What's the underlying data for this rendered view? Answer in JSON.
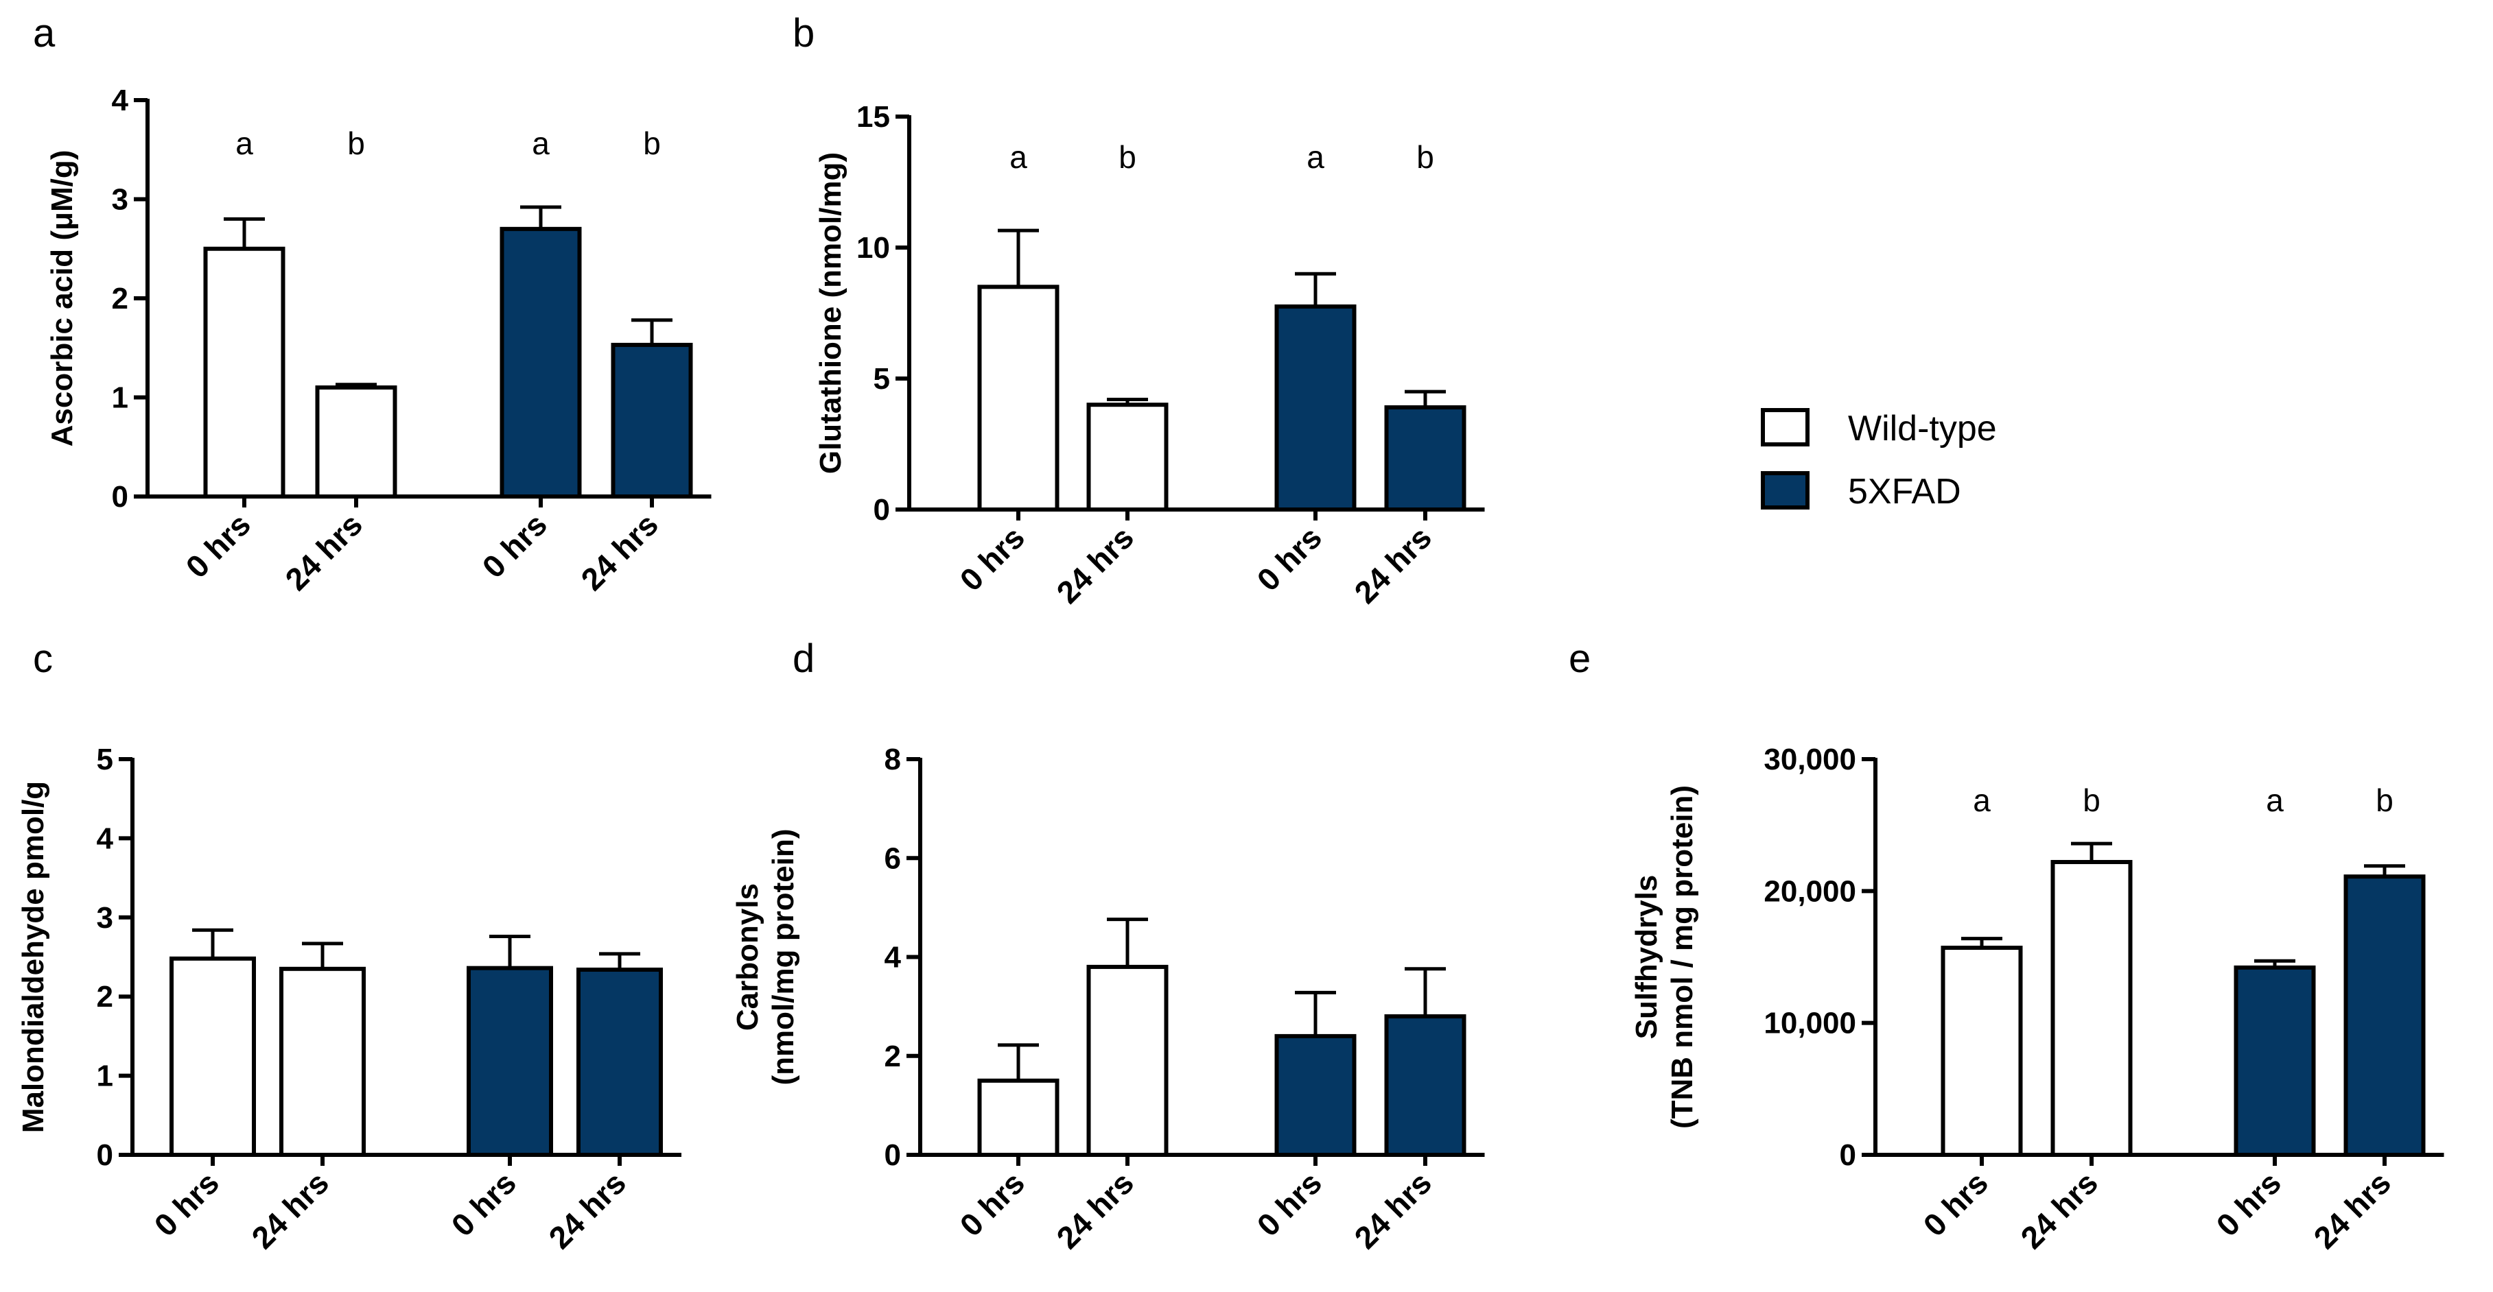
{
  "colors": {
    "wild_type": "#ffffff",
    "fxfad": "#053763",
    "axis": "#000000"
  },
  "legend": {
    "entries": [
      {
        "label": "Wild-type",
        "color": "#ffffff"
      },
      {
        "label": "5XFAD",
        "color": "#053763"
      }
    ]
  },
  "chart_data": [
    {
      "panel": "a",
      "type": "bar",
      "ylabel": [
        "Ascorbic acid (μM/g)"
      ],
      "ylim": [
        0,
        4
      ],
      "yticks": [
        0,
        1,
        2,
        3,
        4
      ],
      "ytick_labels": [
        "0",
        "1",
        "2",
        "3",
        "4"
      ],
      "categories": [
        "0 hrs",
        "24 hrs",
        "0 hrs",
        "24 hrs"
      ],
      "groups": [
        "Wild-type",
        "Wild-type",
        "5XFAD",
        "5XFAD"
      ],
      "values": [
        2.5,
        1.1,
        2.7,
        1.53
      ],
      "errors": [
        0.3,
        0.03,
        0.22,
        0.25
      ],
      "annotations": [
        "a",
        "b",
        "a",
        "b"
      ]
    },
    {
      "panel": "b",
      "type": "bar",
      "ylabel": [
        "Glutathione (nmol/mg)"
      ],
      "ylim": [
        0,
        15
      ],
      "yticks": [
        0,
        5,
        10,
        15
      ],
      "ytick_labels": [
        "0",
        "5",
        "10",
        "15"
      ],
      "categories": [
        "0 hrs",
        "24 hrs",
        "0 hrs",
        "24 hrs"
      ],
      "groups": [
        "Wild-type",
        "Wild-type",
        "5XFAD",
        "5XFAD"
      ],
      "values": [
        8.5,
        4.0,
        7.75,
        3.9
      ],
      "errors": [
        2.15,
        0.2,
        1.25,
        0.6
      ],
      "annotations": [
        "a",
        "b",
        "a",
        "b"
      ]
    },
    {
      "panel": "c",
      "type": "bar",
      "ylabel": [
        "Malondialdehyde pmol/g"
      ],
      "ylim": [
        0,
        5
      ],
      "yticks": [
        0,
        1,
        2,
        3,
        4,
        5
      ],
      "ytick_labels": [
        "0",
        "1",
        "2",
        "3",
        "4",
        "5"
      ],
      "categories": [
        "0 hrs",
        "24 hrs",
        "0 hrs",
        "24 hrs"
      ],
      "groups": [
        "Wild-type",
        "Wild-type",
        "5XFAD",
        "5XFAD"
      ],
      "values": [
        2.48,
        2.35,
        2.36,
        2.34
      ],
      "errors": [
        0.36,
        0.32,
        0.4,
        0.2
      ],
      "annotations": []
    },
    {
      "panel": "d",
      "type": "bar",
      "ylabel": [
        "Carbonyls",
        "(nmol/mg protein)"
      ],
      "ylim": [
        0,
        8
      ],
      "yticks": [
        0,
        2,
        4,
        6,
        8
      ],
      "ytick_labels": [
        "0",
        "2",
        "4",
        "6",
        "8"
      ],
      "categories": [
        "0 hrs",
        "24 hrs",
        "0 hrs",
        "24 hrs"
      ],
      "groups": [
        "Wild-type",
        "Wild-type",
        "5XFAD",
        "5XFAD"
      ],
      "values": [
        1.5,
        3.8,
        2.4,
        2.8
      ],
      "errors": [
        0.72,
        0.96,
        0.88,
        0.96
      ],
      "annotations": []
    },
    {
      "panel": "e",
      "type": "bar",
      "ylabel": [
        "Sulfhydryls",
        "(TNB nmol / mg protein)"
      ],
      "ylim": [
        0,
        30000
      ],
      "yticks": [
        0,
        10000,
        20000,
        30000
      ],
      "ytick_labels": [
        "0",
        "10,000",
        "20,000",
        "30,000"
      ],
      "categories": [
        "0 hrs",
        "24 hrs",
        "0 hrs",
        "24 hrs"
      ],
      "groups": [
        "Wild-type",
        "Wild-type",
        "5XFAD",
        "5XFAD"
      ],
      "values": [
        15700,
        22200,
        14200,
        21100
      ],
      "errors": [
        700,
        1400,
        500,
        800
      ],
      "annotations": [
        "a",
        "b",
        "a",
        "b"
      ]
    }
  ]
}
